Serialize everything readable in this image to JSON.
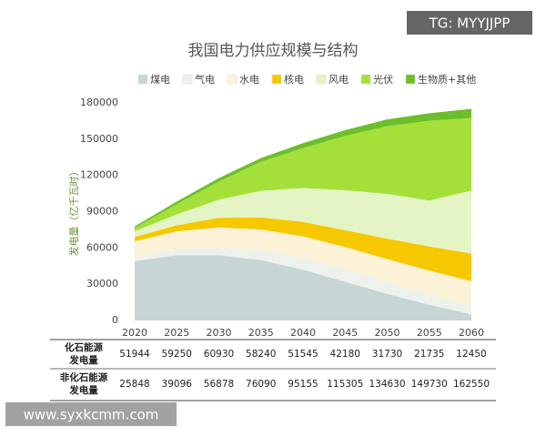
{
  "chart_data": {
    "type": "stacked-area",
    "title": "我国电力供应规模与结构",
    "y_label": "发电量（亿千瓦时）",
    "categories": [
      "2020",
      "2025",
      "2030",
      "2035",
      "2040",
      "2045",
      "2050",
      "2055",
      "2060"
    ],
    "series": [
      {
        "name": "煤电",
        "color": "#c8d5d5",
        "values": [
          49000,
          54000,
          54000,
          50000,
          42000,
          32000,
          22000,
          13000,
          5000
        ]
      },
      {
        "name": "气电",
        "color": "#eef1ec",
        "values": [
          2944,
          5250,
          6930,
          8240,
          9545,
          10180,
          9730,
          8735,
          7450
        ]
      },
      {
        "name": "水电",
        "color": "#fbf2d8",
        "values": [
          13500,
          14500,
          16000,
          17000,
          18000,
          18500,
          19000,
          19500,
          20000
        ]
      },
      {
        "name": "核电",
        "color": "#f6c800",
        "values": [
          3700,
          5000,
          8000,
          10000,
          12000,
          14000,
          17000,
          20000,
          23000
        ]
      },
      {
        "name": "风电",
        "color": "#e5f4c4",
        "values": [
          4700,
          9000,
          15000,
          22000,
          28000,
          33000,
          37000,
          38000,
          52000
        ]
      },
      {
        "name": "光伏",
        "color": "#a5e03a",
        "values": [
          2600,
          8500,
          15000,
          24000,
          33000,
          45000,
          56000,
          66000,
          60000
        ]
      },
      {
        "name": "生物质+其他",
        "color": "#6cbf2a",
        "values": [
          1348,
          2096,
          2878,
          3090,
          4155,
          4805,
          5630,
          6230,
          7550
        ]
      }
    ],
    "ylim": [
      0,
      180000
    ],
    "yticks": [
      0,
      30000,
      60000,
      90000,
      120000,
      150000,
      180000
    ]
  },
  "table": {
    "rows": [
      {
        "label": [
          "化石能源",
          "发电量"
        ],
        "values": [
          51944,
          59250,
          60930,
          58240,
          51545,
          42180,
          31730,
          21735,
          12450
        ]
      },
      {
        "label": [
          "非化石能源",
          "发电量"
        ],
        "values": [
          25848,
          39096,
          56878,
          76090,
          95155,
          115305,
          134630,
          149730,
          162550
        ]
      }
    ]
  },
  "watermarks": [
    "TG: MYYJJPP",
    "www.syxkcmm.com"
  ]
}
